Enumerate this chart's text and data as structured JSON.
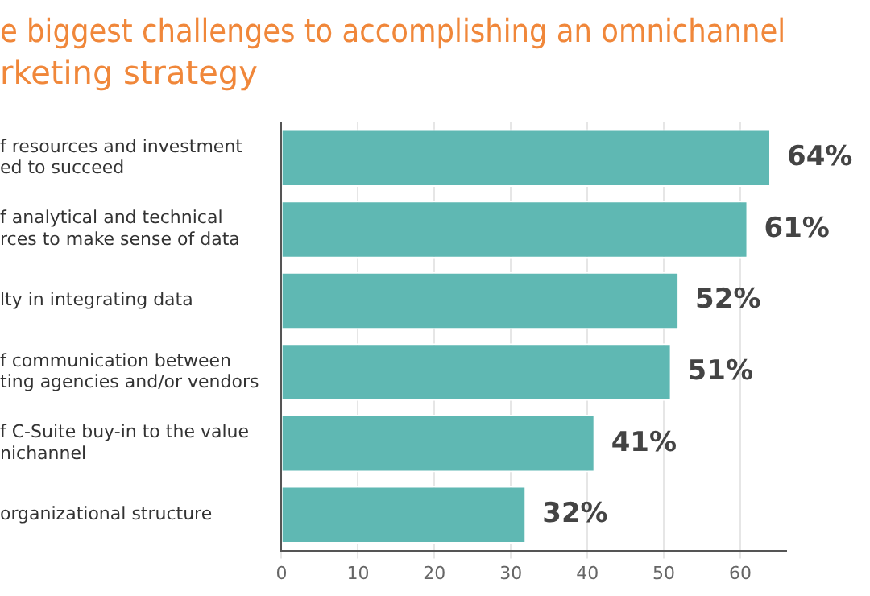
{
  "chart_data": {
    "type": "bar",
    "orientation": "horizontal",
    "title": "e biggest challenges to accomplishing an omnichannel\nrketing strategy",
    "categories": [
      "f resources and investment\ned to succeed",
      "f analytical and technical\nrces to make sense of data",
      "lty in integrating data",
      "f communication between\nting agencies and/or vendors",
      "f C-Suite buy-in to the value\nnichannel",
      "organizational structure"
    ],
    "values": [
      64,
      61,
      52,
      51,
      41,
      32
    ],
    "value_labels": [
      "64%",
      "61%",
      "52%",
      "51%",
      "41%",
      "32%"
    ],
    "color": "#5fb8b3",
    "xlim": [
      0,
      66
    ],
    "xticks": [
      0,
      10,
      20,
      30,
      40,
      50,
      60
    ],
    "grid": "x"
  }
}
